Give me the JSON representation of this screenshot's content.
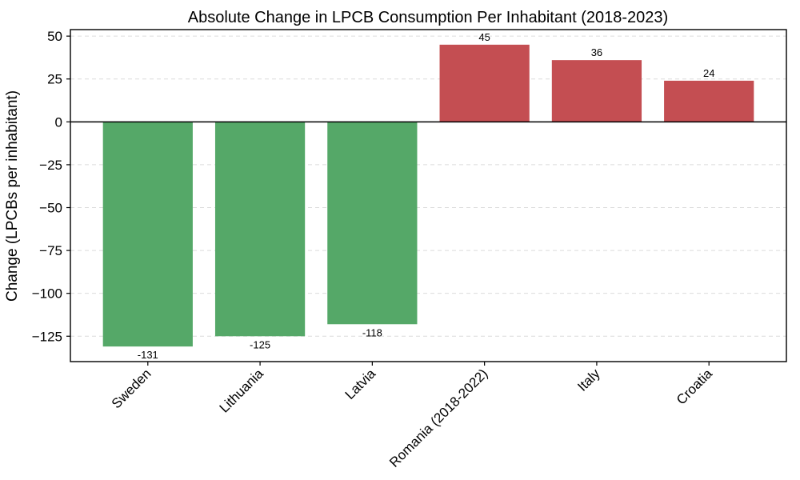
{
  "chart_data": {
    "type": "bar",
    "title": "Absolute Change in LPCB Consumption Per Inhabitant (2018-2023)",
    "xlabel": "",
    "ylabel": "Change (LPCBs per inhabitant)",
    "categories": [
      "Sweden",
      "Lithuania",
      "Latvia",
      "Romania (2018-2022)",
      "Italy",
      "Croatia"
    ],
    "values": [
      -131,
      -125,
      -118,
      45,
      36,
      24
    ],
    "bar_value_labels": [
      "-131",
      "-125",
      "-118",
      "45",
      "36",
      "24"
    ],
    "yticks": [
      50,
      25,
      0,
      -25,
      -50,
      -75,
      -100,
      -125
    ],
    "ytick_labels": [
      "50",
      "25",
      "0",
      "−25",
      "−50",
      "−75",
      "−100",
      "−125"
    ],
    "ylim": [
      -139.8,
      53.8
    ],
    "grid": "horizontal, dashed, behind bars",
    "legend": "none",
    "x_tick_label_rotation_deg": 45,
    "colors": {
      "positive_bar": "#c44e52",
      "negative_bar": "#55a868",
      "zero_line": "#000000",
      "gridline": "#dcdcdc",
      "frame": "#000000",
      "text": "#000000",
      "background": "#ffffff"
    }
  }
}
